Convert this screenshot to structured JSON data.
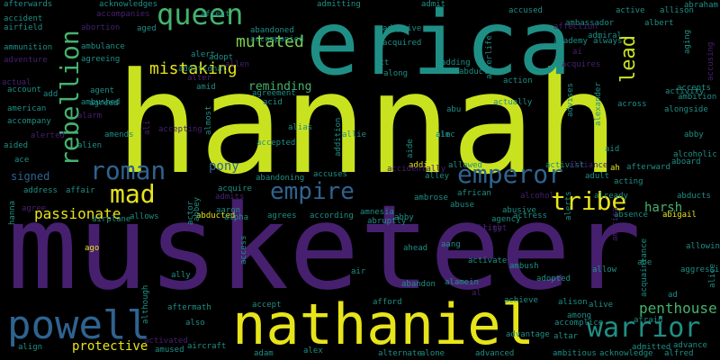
{
  "colors": {
    "background": "#000000",
    "yellow_green": "#c9e21f",
    "yellow": "#e7e41a",
    "purple": "#46206f",
    "teal": "#1f8f86",
    "blue": "#2f6390",
    "green": "#45b26e",
    "light_green": "#7ccf4f"
  },
  "words": [
    "hannah",
    "musketeer",
    "erica",
    "nathaniel",
    "powell",
    "queen",
    "warrior",
    "rebellion",
    "emperor",
    "roman",
    "empire",
    "mad",
    "tribe",
    "mutated",
    "mistaking",
    "lead",
    "passionate",
    "pony",
    "penthouse",
    "harsh",
    "protective",
    "signed",
    "reminding",
    "afterwards",
    "acknowledges",
    "affect",
    "admitting",
    "admit",
    "accused",
    "active",
    "allison",
    "abraham",
    "accident",
    "accompanies",
    "aged",
    "abandoned",
    "adoptive",
    "ambassador",
    "albert",
    "airfield",
    "abortion",
    "accompanied",
    "affection",
    "admiral",
    "aging",
    "actual",
    "ammunition",
    "ambulance",
    "adopt",
    "allen",
    "acquired",
    "academy",
    "always",
    "adventure",
    "agreeing",
    "additional",
    "act",
    "adding",
    "afterlife",
    "accusing",
    "account",
    "alter",
    "amid",
    "along",
    "abduction",
    "action",
    "activity",
    "add",
    "ambushed",
    "agent",
    "accepts",
    "ambition",
    "american",
    "agreed",
    "acid",
    "actually",
    "alexander",
    "alongside",
    "accompany",
    "alarm",
    "agreement",
    "abu",
    "across",
    "advises",
    "amends",
    "ali",
    "accepting",
    "almost",
    "alias",
    "aim",
    "abby",
    "aided",
    "alien",
    "addition",
    "allie",
    "aid",
    "ace",
    "accepted",
    "addict",
    "allowed",
    "activist",
    "alliance",
    "alcoholic",
    "aboard",
    "afterward",
    "accuses",
    "abandoning",
    "accidentally",
    "alley",
    "adult",
    "address",
    "affair",
    "acquire",
    "admits",
    "ambrose",
    "african",
    "alcohol",
    "acting",
    "already",
    "hanna",
    "abuse",
    "abusive",
    "agency",
    "abducts",
    "actress",
    "agree",
    "airplane",
    "allows",
    "abducted",
    "alpha",
    "agrees",
    "according",
    "amnesia",
    "abruptly",
    "absence",
    "abigail",
    "abbey",
    "actor",
    "aaron",
    "albright",
    "alerts",
    "ago",
    "ahead",
    "aang",
    "allowing",
    "america",
    "ambush",
    "activate",
    "ally",
    "access",
    "air",
    "abandon",
    "alamein",
    "allow",
    "aggressive",
    "adopted",
    "alice",
    "afford",
    "achieve",
    "ad",
    "aftermath",
    "alison",
    "alive",
    "accept",
    "although",
    "among",
    "acquaintance",
    "also",
    "accomplice",
    "afraid",
    "align",
    "aircraft",
    "activated",
    "amused",
    "alex",
    "advantage",
    "altar",
    "advance",
    "admitted",
    "adam",
    "alternate",
    "alone",
    "advanced",
    "ambitious",
    "acknowledge",
    "alfred",
    "alec",
    "abby",
    "abe",
    "ah",
    "al",
    "ai",
    "aide",
    "acquires",
    "alerted",
    "ability",
    "alert",
    "airport"
  ]
}
